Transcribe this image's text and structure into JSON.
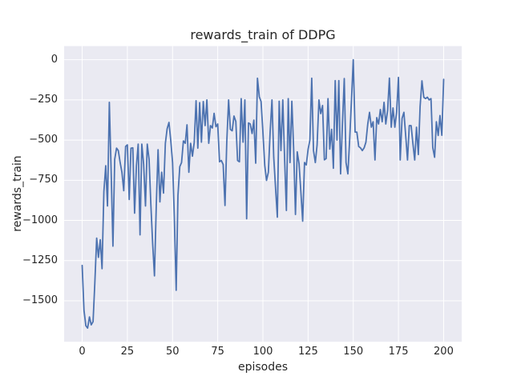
{
  "figure": {
    "background_color": "#ffffff",
    "text_color": "#262626"
  },
  "chart_data": {
    "type": "line",
    "title": "rewards_train of DDPG",
    "xlabel": "episodes",
    "ylabel": "rewards_train",
    "x_ticks": [
      0,
      25,
      50,
      75,
      100,
      125,
      150,
      175,
      200
    ],
    "y_ticks": [
      0,
      -250,
      -500,
      -750,
      -1000,
      -1250,
      -1500
    ],
    "xlim": [
      -10,
      210
    ],
    "ylim": [
      -1755,
      85
    ],
    "grid": true,
    "legend": "none",
    "background": "#eaeaf2",
    "grid_color": "#ffffff",
    "series": [
      {
        "name": "rewards_train",
        "color": "#4c72b0",
        "x_start": 0,
        "x_step": 1,
        "values": [
          -1280,
          -1560,
          -1655,
          -1670,
          -1600,
          -1650,
          -1630,
          -1390,
          -1110,
          -1230,
          -1120,
          -1300,
          -820,
          -660,
          -910,
          -265,
          -680,
          -1160,
          -620,
          -550,
          -565,
          -640,
          -700,
          -815,
          -540,
          -530,
          -870,
          -550,
          -548,
          -955,
          -660,
          -525,
          -1090,
          -525,
          -650,
          -910,
          -525,
          -620,
          -900,
          -1150,
          -1345,
          -900,
          -560,
          -885,
          -700,
          -830,
          -520,
          -430,
          -390,
          -500,
          -640,
          -980,
          -1435,
          -845,
          -665,
          -640,
          -505,
          -520,
          -405,
          -700,
          -520,
          -600,
          -515,
          -255,
          -550,
          -267,
          -513,
          -260,
          -410,
          -250,
          -520,
          -410,
          -425,
          -333,
          -417,
          -400,
          -635,
          -627,
          -652,
          -907,
          -513,
          -250,
          -433,
          -442,
          -350,
          -384,
          -627,
          -635,
          -242,
          -513,
          -250,
          -990,
          -393,
          -400,
          -459,
          -376,
          -644,
          -115,
          -230,
          -260,
          -450,
          -658,
          -751,
          -700,
          -450,
          -250,
          -607,
          -800,
          -980,
          -258,
          -565,
          -250,
          -623,
          -938,
          -242,
          -640,
          -258,
          -548,
          -963,
          -573,
          -648,
          -818,
          -1005,
          -640,
          -655,
          -556,
          -500,
          -115,
          -565,
          -640,
          -530,
          -250,
          -335,
          -285,
          -623,
          -615,
          -242,
          -556,
          -433,
          -675,
          -130,
          -500,
          -130,
          -710,
          -400,
          -117,
          -640,
          -710,
          -500,
          -250,
          0,
          -450,
          -450,
          -540,
          -548,
          -565,
          -548,
          -513,
          -400,
          -327,
          -420,
          -386,
          -624,
          -360,
          -400,
          -310,
          -386,
          -265,
          -400,
          -315,
          -114,
          -420,
          -300,
          -420,
          -327,
          -110,
          -624,
          -365,
          -327,
          -470,
          -624,
          -410,
          -410,
          -520,
          -624,
          -420,
          -590,
          -292,
          -131,
          -233,
          -242,
          -233,
          -250,
          -242,
          -547,
          -607,
          -386,
          -471,
          -347,
          -470,
          -122
        ]
      }
    ]
  }
}
